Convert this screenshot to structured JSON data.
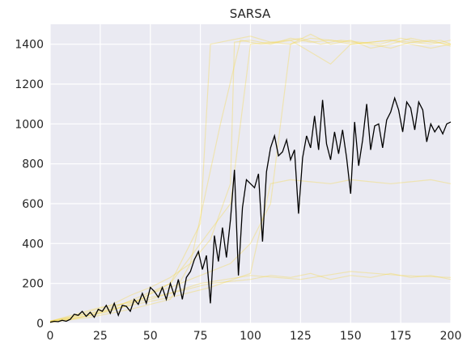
{
  "chart_data": {
    "type": "line",
    "title": "SARSA",
    "xlabel": "",
    "ylabel": "",
    "xlim": [
      0,
      200
    ],
    "ylim": [
      0,
      1500
    ],
    "x_ticks": [
      0,
      25,
      50,
      75,
      100,
      125,
      150,
      175,
      200
    ],
    "y_ticks": [
      0,
      200,
      400,
      600,
      800,
      1000,
      1200,
      1400
    ],
    "grid": true,
    "background": "#eaeaf2",
    "series": [
      {
        "role": "mean",
        "color": "#000000",
        "points": [
          [
            0,
            5
          ],
          [
            2,
            10
          ],
          [
            4,
            8
          ],
          [
            6,
            15
          ],
          [
            8,
            10
          ],
          [
            10,
            20
          ],
          [
            12,
            45
          ],
          [
            14,
            40
          ],
          [
            16,
            60
          ],
          [
            18,
            35
          ],
          [
            20,
            55
          ],
          [
            22,
            30
          ],
          [
            24,
            70
          ],
          [
            26,
            60
          ],
          [
            28,
            90
          ],
          [
            30,
            50
          ],
          [
            32,
            100
          ],
          [
            34,
            40
          ],
          [
            36,
            90
          ],
          [
            38,
            85
          ],
          [
            40,
            60
          ],
          [
            42,
            120
          ],
          [
            44,
            95
          ],
          [
            46,
            150
          ],
          [
            48,
            100
          ],
          [
            50,
            180
          ],
          [
            52,
            160
          ],
          [
            54,
            130
          ],
          [
            56,
            180
          ],
          [
            58,
            120
          ],
          [
            60,
            200
          ],
          [
            62,
            140
          ],
          [
            64,
            220
          ],
          [
            66,
            120
          ],
          [
            68,
            230
          ],
          [
            70,
            260
          ],
          [
            72,
            320
          ],
          [
            74,
            360
          ],
          [
            76,
            270
          ],
          [
            78,
            340
          ],
          [
            80,
            100
          ],
          [
            82,
            440
          ],
          [
            84,
            310
          ],
          [
            86,
            480
          ],
          [
            88,
            330
          ],
          [
            90,
            520
          ],
          [
            92,
            770
          ],
          [
            94,
            240
          ],
          [
            96,
            580
          ],
          [
            98,
            720
          ],
          [
            100,
            700
          ],
          [
            102,
            680
          ],
          [
            104,
            750
          ],
          [
            106,
            410
          ],
          [
            108,
            760
          ],
          [
            110,
            880
          ],
          [
            112,
            940
          ],
          [
            114,
            840
          ],
          [
            116,
            860
          ],
          [
            118,
            920
          ],
          [
            120,
            820
          ],
          [
            122,
            870
          ],
          [
            124,
            550
          ],
          [
            126,
            830
          ],
          [
            128,
            940
          ],
          [
            130,
            880
          ],
          [
            132,
            1040
          ],
          [
            134,
            870
          ],
          [
            136,
            1120
          ],
          [
            138,
            900
          ],
          [
            140,
            820
          ],
          [
            142,
            960
          ],
          [
            144,
            850
          ],
          [
            146,
            970
          ],
          [
            148,
            830
          ],
          [
            150,
            650
          ],
          [
            152,
            1010
          ],
          [
            154,
            790
          ],
          [
            156,
            920
          ],
          [
            158,
            1100
          ],
          [
            160,
            870
          ],
          [
            162,
            990
          ],
          [
            164,
            1000
          ],
          [
            166,
            880
          ],
          [
            168,
            1020
          ],
          [
            170,
            1060
          ],
          [
            172,
            1130
          ],
          [
            174,
            1070
          ],
          [
            176,
            960
          ],
          [
            178,
            1110
          ],
          [
            180,
            1080
          ],
          [
            182,
            970
          ],
          [
            184,
            1110
          ],
          [
            186,
            1070
          ],
          [
            188,
            910
          ],
          [
            190,
            1000
          ],
          [
            192,
            960
          ],
          [
            194,
            990
          ],
          [
            196,
            950
          ],
          [
            198,
            1000
          ],
          [
            200,
            1010
          ]
        ]
      },
      {
        "role": "run",
        "color": "#f5d63d",
        "points": [
          [
            0,
            10
          ],
          [
            10,
            30
          ],
          [
            20,
            60
          ],
          [
            30,
            90
          ],
          [
            40,
            140
          ],
          [
            50,
            180
          ],
          [
            60,
            230
          ],
          [
            70,
            300
          ],
          [
            80,
            420
          ],
          [
            90,
            700
          ],
          [
            92,
            1410
          ],
          [
            100,
            1420
          ],
          [
            110,
            1400
          ],
          [
            120,
            1430
          ],
          [
            130,
            1410
          ],
          [
            140,
            1420
          ],
          [
            150,
            1400
          ],
          [
            160,
            1410
          ],
          [
            170,
            1420
          ],
          [
            180,
            1410
          ],
          [
            190,
            1400
          ],
          [
            200,
            1420
          ]
        ]
      },
      {
        "role": "run",
        "color": "#f5d63d",
        "points": [
          [
            0,
            5
          ],
          [
            10,
            20
          ],
          [
            20,
            40
          ],
          [
            30,
            70
          ],
          [
            40,
            90
          ],
          [
            50,
            150
          ],
          [
            60,
            180
          ],
          [
            70,
            220
          ],
          [
            80,
            260
          ],
          [
            90,
            300
          ],
          [
            100,
            400
          ],
          [
            110,
            600
          ],
          [
            120,
            1400
          ],
          [
            130,
            1450
          ],
          [
            140,
            1400
          ],
          [
            150,
            1420
          ],
          [
            160,
            1380
          ],
          [
            170,
            1400
          ],
          [
            180,
            1430
          ],
          [
            190,
            1410
          ],
          [
            200,
            1400
          ]
        ]
      },
      {
        "role": "run",
        "color": "#f5d63d",
        "points": [
          [
            0,
            8
          ],
          [
            15,
            30
          ],
          [
            30,
            60
          ],
          [
            45,
            120
          ],
          [
            60,
            200
          ],
          [
            75,
            500
          ],
          [
            80,
            1400
          ],
          [
            90,
            1420
          ],
          [
            100,
            1440
          ],
          [
            110,
            1410
          ],
          [
            120,
            1400
          ],
          [
            130,
            1430
          ],
          [
            140,
            1420
          ],
          [
            150,
            1410
          ],
          [
            160,
            1400
          ],
          [
            170,
            1380
          ],
          [
            180,
            1410
          ],
          [
            190,
            1420
          ],
          [
            200,
            1390
          ]
        ]
      },
      {
        "role": "run",
        "color": "#f5d63d",
        "points": [
          [
            0,
            12
          ],
          [
            20,
            50
          ],
          [
            40,
            110
          ],
          [
            60,
            150
          ],
          [
            80,
            200
          ],
          [
            100,
            220
          ],
          [
            110,
            240
          ],
          [
            120,
            230
          ],
          [
            130,
            250
          ],
          [
            140,
            220
          ],
          [
            150,
            240
          ],
          [
            160,
            230
          ],
          [
            170,
            250
          ],
          [
            180,
            230
          ],
          [
            190,
            240
          ],
          [
            200,
            220
          ]
        ]
      },
      {
        "role": "run",
        "color": "#f5d63d",
        "points": [
          [
            0,
            6
          ],
          [
            20,
            40
          ],
          [
            40,
            90
          ],
          [
            60,
            130
          ],
          [
            80,
            180
          ],
          [
            100,
            250
          ],
          [
            110,
            700
          ],
          [
            120,
            720
          ],
          [
            130,
            710
          ],
          [
            140,
            700
          ],
          [
            150,
            720
          ],
          [
            160,
            710
          ],
          [
            170,
            700
          ],
          [
            180,
            710
          ],
          [
            190,
            720
          ],
          [
            200,
            700
          ]
        ]
      },
      {
        "role": "run",
        "color": "#f5d63d",
        "points": [
          [
            0,
            4
          ],
          [
            20,
            30
          ],
          [
            40,
            70
          ],
          [
            60,
            120
          ],
          [
            70,
            300
          ],
          [
            85,
            1000
          ],
          [
            95,
            1420
          ],
          [
            105,
            1400
          ],
          [
            115,
            1410
          ],
          [
            125,
            1430
          ],
          [
            135,
            1400
          ],
          [
            145,
            1420
          ],
          [
            155,
            1410
          ],
          [
            165,
            1400
          ],
          [
            175,
            1430
          ],
          [
            185,
            1410
          ],
          [
            195,
            1420
          ],
          [
            200,
            1400
          ]
        ]
      },
      {
        "role": "run",
        "color": "#f5d63d",
        "points": [
          [
            0,
            10
          ],
          [
            25,
            80
          ],
          [
            50,
            120
          ],
          [
            75,
            200
          ],
          [
            100,
            240
          ],
          [
            125,
            220
          ],
          [
            150,
            260
          ],
          [
            175,
            240
          ],
          [
            200,
            230
          ]
        ]
      },
      {
        "role": "run",
        "color": "#f5d63d",
        "points": [
          [
            0,
            8
          ],
          [
            30,
            70
          ],
          [
            60,
            200
          ],
          [
            90,
            600
          ],
          [
            100,
            1400
          ],
          [
            120,
            1420
          ],
          [
            140,
            1300
          ],
          [
            150,
            1400
          ],
          [
            170,
            1420
          ],
          [
            190,
            1380
          ],
          [
            200,
            1400
          ]
        ]
      }
    ]
  }
}
